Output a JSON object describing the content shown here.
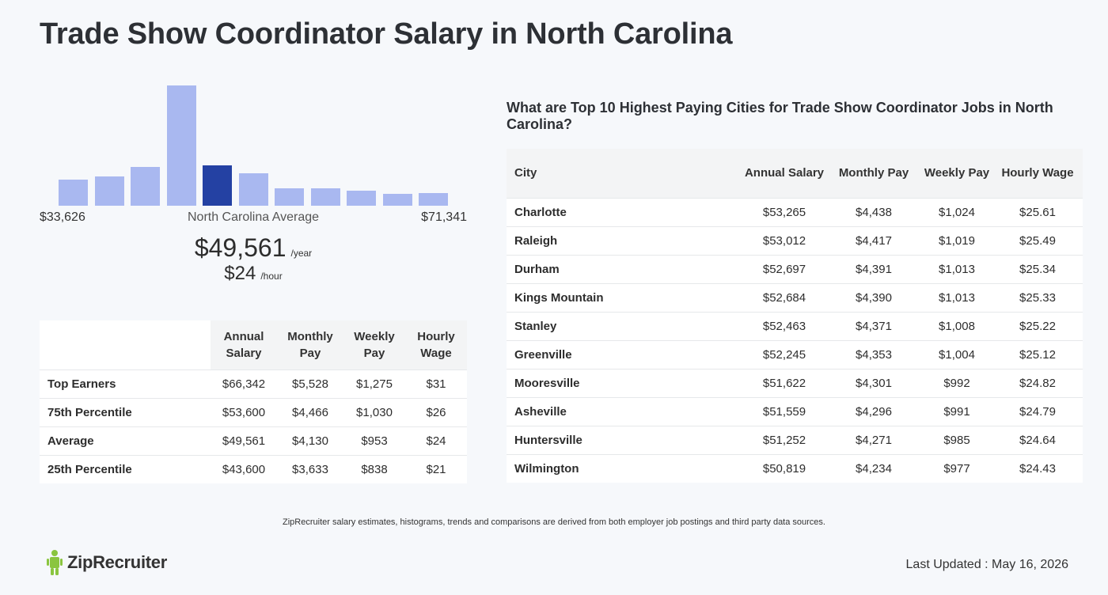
{
  "page": {
    "title": "Trade Show Coordinator Salary in North Carolina"
  },
  "chart_data": {
    "type": "bar",
    "title": "",
    "xlabel": "",
    "ylabel": "",
    "categories": [
      "1",
      "2",
      "3",
      "4",
      "5",
      "6",
      "7",
      "8",
      "9",
      "10",
      "11"
    ],
    "values": [
      33,
      37,
      49,
      152,
      51,
      41,
      22,
      22,
      19,
      15,
      16
    ],
    "highlight_index": 4,
    "highlight_color": "#2441a3",
    "bar_color": "#a9b8f0",
    "x_min_label": "$33,626",
    "x_max_label": "$71,341",
    "center_label": "North Carolina Average"
  },
  "average": {
    "annual": "$49,561",
    "annual_unit": "/year",
    "hourly": "$24",
    "hourly_unit": "/hour"
  },
  "percentile_table": {
    "headers": [
      "Annual Salary",
      "Monthly Pay",
      "Weekly Pay",
      "Hourly Wage"
    ],
    "rows": [
      {
        "label": "Top Earners",
        "values": [
          "$66,342",
          "$5,528",
          "$1,275",
          "$31"
        ]
      },
      {
        "label": "75th Percentile",
        "values": [
          "$53,600",
          "$4,466",
          "$1,030",
          "$26"
        ]
      },
      {
        "label": "Average",
        "values": [
          "$49,561",
          "$4,130",
          "$953",
          "$24"
        ]
      },
      {
        "label": "25th Percentile",
        "values": [
          "$43,600",
          "$3,633",
          "$838",
          "$21"
        ]
      }
    ]
  },
  "cities": {
    "title": "What are Top 10 Highest Paying Cities for Trade Show Coordinator Jobs in North Carolina?",
    "headers": [
      "City",
      "Annual Salary",
      "Monthly Pay",
      "Weekly Pay",
      "Hourly Wage"
    ],
    "rows": [
      {
        "city": "Charlotte",
        "values": [
          "$53,265",
          "$4,438",
          "$1,024",
          "$25.61"
        ]
      },
      {
        "city": "Raleigh",
        "values": [
          "$53,012",
          "$4,417",
          "$1,019",
          "$25.49"
        ]
      },
      {
        "city": "Durham",
        "values": [
          "$52,697",
          "$4,391",
          "$1,013",
          "$25.34"
        ]
      },
      {
        "city": "Kings Mountain",
        "values": [
          "$52,684",
          "$4,390",
          "$1,013",
          "$25.33"
        ]
      },
      {
        "city": "Stanley",
        "values": [
          "$52,463",
          "$4,371",
          "$1,008",
          "$25.22"
        ]
      },
      {
        "city": "Greenville",
        "values": [
          "$52,245",
          "$4,353",
          "$1,004",
          "$25.12"
        ]
      },
      {
        "city": "Mooresville",
        "values": [
          "$51,622",
          "$4,301",
          "$992",
          "$24.82"
        ]
      },
      {
        "city": "Asheville",
        "values": [
          "$51,559",
          "$4,296",
          "$991",
          "$24.79"
        ]
      },
      {
        "city": "Huntersville",
        "values": [
          "$51,252",
          "$4,271",
          "$985",
          "$24.64"
        ]
      },
      {
        "city": "Wilmington",
        "values": [
          "$50,819",
          "$4,234",
          "$977",
          "$24.43"
        ]
      }
    ]
  },
  "footer": {
    "note": "ZipRecruiter salary estimates, histograms, trends and comparisons are derived from both employer job postings and third party data sources.",
    "logo_text": "ZipRecruiter",
    "logo_color": "#8ac53f",
    "updated": "Last Updated : May 16, 2026"
  }
}
